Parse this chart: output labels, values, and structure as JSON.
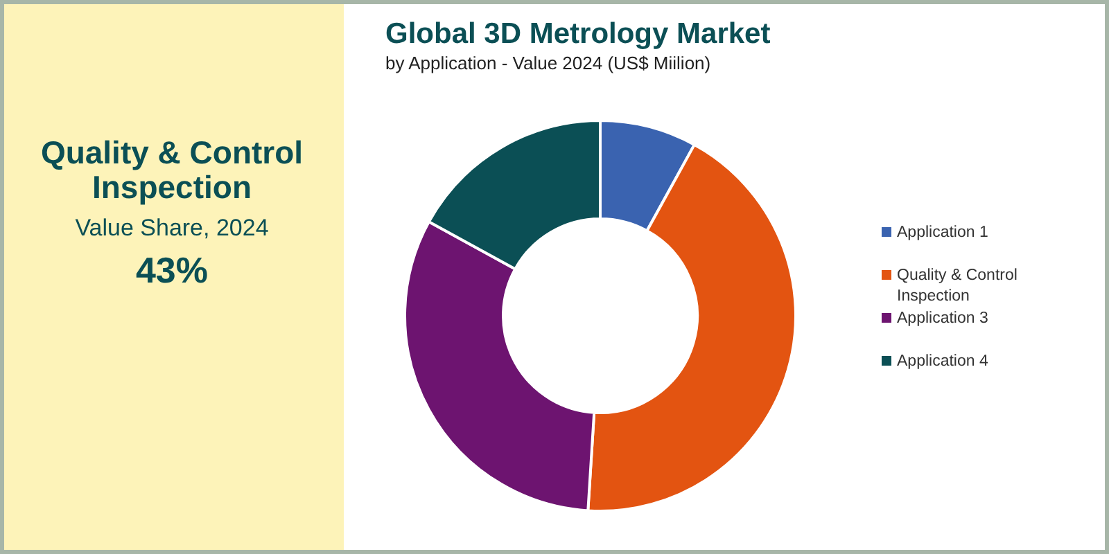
{
  "chart_data": {
    "type": "donut",
    "title": "Global 3D Metrology Market",
    "subtitle": "by Application - Value 2024 (US$ Miilion)",
    "categories": [
      "Application 1",
      "Quality & Control Inspection",
      "Application 3",
      "Application 4"
    ],
    "values": [
      8,
      43,
      32,
      17
    ],
    "colors": [
      "#3a63b0",
      "#e35411",
      "#6d1470",
      "#0b4f55"
    ],
    "legend": "right",
    "annotations": [
      "Quality & Control Inspection",
      "Value Share, 2024",
      "43%"
    ]
  }
}
